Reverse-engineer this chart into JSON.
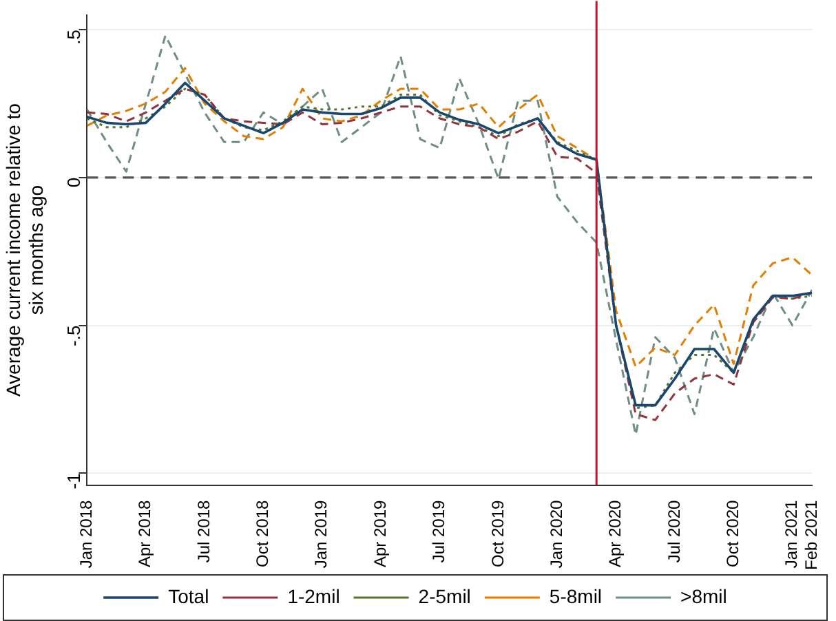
{
  "chart_data": {
    "type": "line",
    "ylabel": "Average current income relative to six months ago",
    "x": [
      "2018-01",
      "2018-02",
      "2018-03",
      "2018-04",
      "2018-05",
      "2018-06",
      "2018-07",
      "2018-08",
      "2018-09",
      "2018-10",
      "2018-11",
      "2018-12",
      "2019-01",
      "2019-02",
      "2019-03",
      "2019-04",
      "2019-05",
      "2019-06",
      "2019-07",
      "2019-08",
      "2019-09",
      "2019-10",
      "2019-11",
      "2019-12",
      "2020-01",
      "2020-02",
      "2020-03",
      "2020-04",
      "2020-05",
      "2020-06",
      "2020-07",
      "2020-08",
      "2020-09",
      "2020-10",
      "2020-11",
      "2020-12",
      "2021-01",
      "2021-02"
    ],
    "series": [
      {
        "name": "Total",
        "color": "#1a476f",
        "line_style": "solid",
        "values": [
          0.205,
          0.185,
          0.18,
          0.185,
          0.25,
          0.32,
          0.26,
          0.2,
          0.175,
          0.15,
          0.185,
          0.23,
          0.22,
          0.215,
          0.215,
          0.235,
          0.27,
          0.27,
          0.22,
          0.195,
          0.18,
          0.15,
          0.175,
          0.2,
          0.115,
          0.08,
          0.06,
          -0.5,
          -0.77,
          -0.77,
          -0.68,
          -0.58,
          -0.58,
          -0.66,
          -0.48,
          -0.4,
          -0.4,
          -0.39
        ]
      },
      {
        "name": "1-2mil",
        "color": "#90353b",
        "line_style": "dashed",
        "values": [
          0.22,
          0.215,
          0.19,
          0.22,
          0.26,
          0.3,
          0.28,
          0.2,
          0.19,
          0.185,
          0.18,
          0.22,
          0.18,
          0.185,
          0.2,
          0.22,
          0.24,
          0.24,
          0.2,
          0.18,
          0.17,
          0.13,
          0.155,
          0.19,
          0.07,
          0.065,
          0.015,
          -0.5,
          -0.8,
          -0.82,
          -0.73,
          -0.68,
          -0.665,
          -0.7,
          -0.49,
          -0.405,
          -0.41,
          -0.39
        ]
      },
      {
        "name": "2-5mil",
        "color": "#55752f",
        "line_style": "dotted",
        "values": [
          0.2,
          0.17,
          0.17,
          0.2,
          0.24,
          0.3,
          0.28,
          0.2,
          0.17,
          0.16,
          0.19,
          0.24,
          0.23,
          0.23,
          0.24,
          0.24,
          0.28,
          0.28,
          0.21,
          0.19,
          0.17,
          0.14,
          0.18,
          0.2,
          0.12,
          0.09,
          0.06,
          -0.5,
          -0.78,
          -0.77,
          -0.66,
          -0.6,
          -0.6,
          -0.66,
          -0.49,
          -0.4,
          -0.41,
          -0.4
        ]
      },
      {
        "name": "5-8mil",
        "color": "#e37e00",
        "line_style": "dashed",
        "values": [
          0.175,
          0.21,
          0.225,
          0.25,
          0.29,
          0.37,
          0.25,
          0.19,
          0.14,
          0.13,
          0.17,
          0.3,
          0.2,
          0.19,
          0.21,
          0.26,
          0.3,
          0.3,
          0.23,
          0.23,
          0.25,
          0.17,
          0.23,
          0.28,
          0.14,
          0.1,
          0.06,
          -0.45,
          -0.64,
          -0.575,
          -0.6,
          -0.5,
          -0.43,
          -0.63,
          -0.365,
          -0.29,
          -0.27,
          -0.33
        ]
      },
      {
        "name": ">8mil",
        "color": "#6e8e84",
        "line_style": "dashed",
        "values": [
          0.23,
          0.12,
          0.02,
          0.25,
          0.48,
          0.35,
          0.22,
          0.12,
          0.12,
          0.22,
          0.18,
          0.24,
          0.3,
          0.12,
          0.17,
          0.22,
          0.41,
          0.13,
          0.1,
          0.335,
          0.18,
          -0.005,
          0.26,
          0.26,
          -0.065,
          -0.15,
          -0.22,
          -0.55,
          -0.87,
          -0.54,
          -0.61,
          -0.8,
          -0.51,
          -0.66,
          -0.54,
          -0.39,
          -0.5,
          -0.38
        ]
      }
    ],
    "xlim": [
      "2018-01",
      "2021-02"
    ],
    "xticks": [
      {
        "value": "2018-01",
        "label": "Jan 2018"
      },
      {
        "value": "2018-04",
        "label": "Apr 2018"
      },
      {
        "value": "2018-07",
        "label": "Jul 2018"
      },
      {
        "value": "2018-10",
        "label": "Oct 2018"
      },
      {
        "value": "2019-01",
        "label": "Jan 2019"
      },
      {
        "value": "2019-04",
        "label": "Apr 2019"
      },
      {
        "value": "2019-07",
        "label": "Jul 2019"
      },
      {
        "value": "2019-10",
        "label": "Oct 2019"
      },
      {
        "value": "2020-01",
        "label": "Jan 2020"
      },
      {
        "value": "2020-04",
        "label": "Apr 2020"
      },
      {
        "value": "2020-07",
        "label": "Jul 2020"
      },
      {
        "value": "2020-10",
        "label": "Oct 2020"
      },
      {
        "value": "2021-01",
        "label": "Jan 2021"
      },
      {
        "value": "2021-02",
        "label": "Feb 2021"
      }
    ],
    "ylim": [
      -1.04,
      0.55
    ],
    "yticks": [
      {
        "value": 0.5,
        "label": ".5"
      },
      0,
      {
        "value": -0.5,
        "label": "-.5"
      },
      -1
    ],
    "ref_lines": [
      {
        "axis": "y",
        "value": 0,
        "color": "#555555",
        "line_style": "dashed"
      },
      {
        "axis": "x",
        "value": "2020-03",
        "color": "#c8102e",
        "line_style": "solid"
      }
    ],
    "grid": "y",
    "legend": "bottom",
    "marker": "none"
  }
}
